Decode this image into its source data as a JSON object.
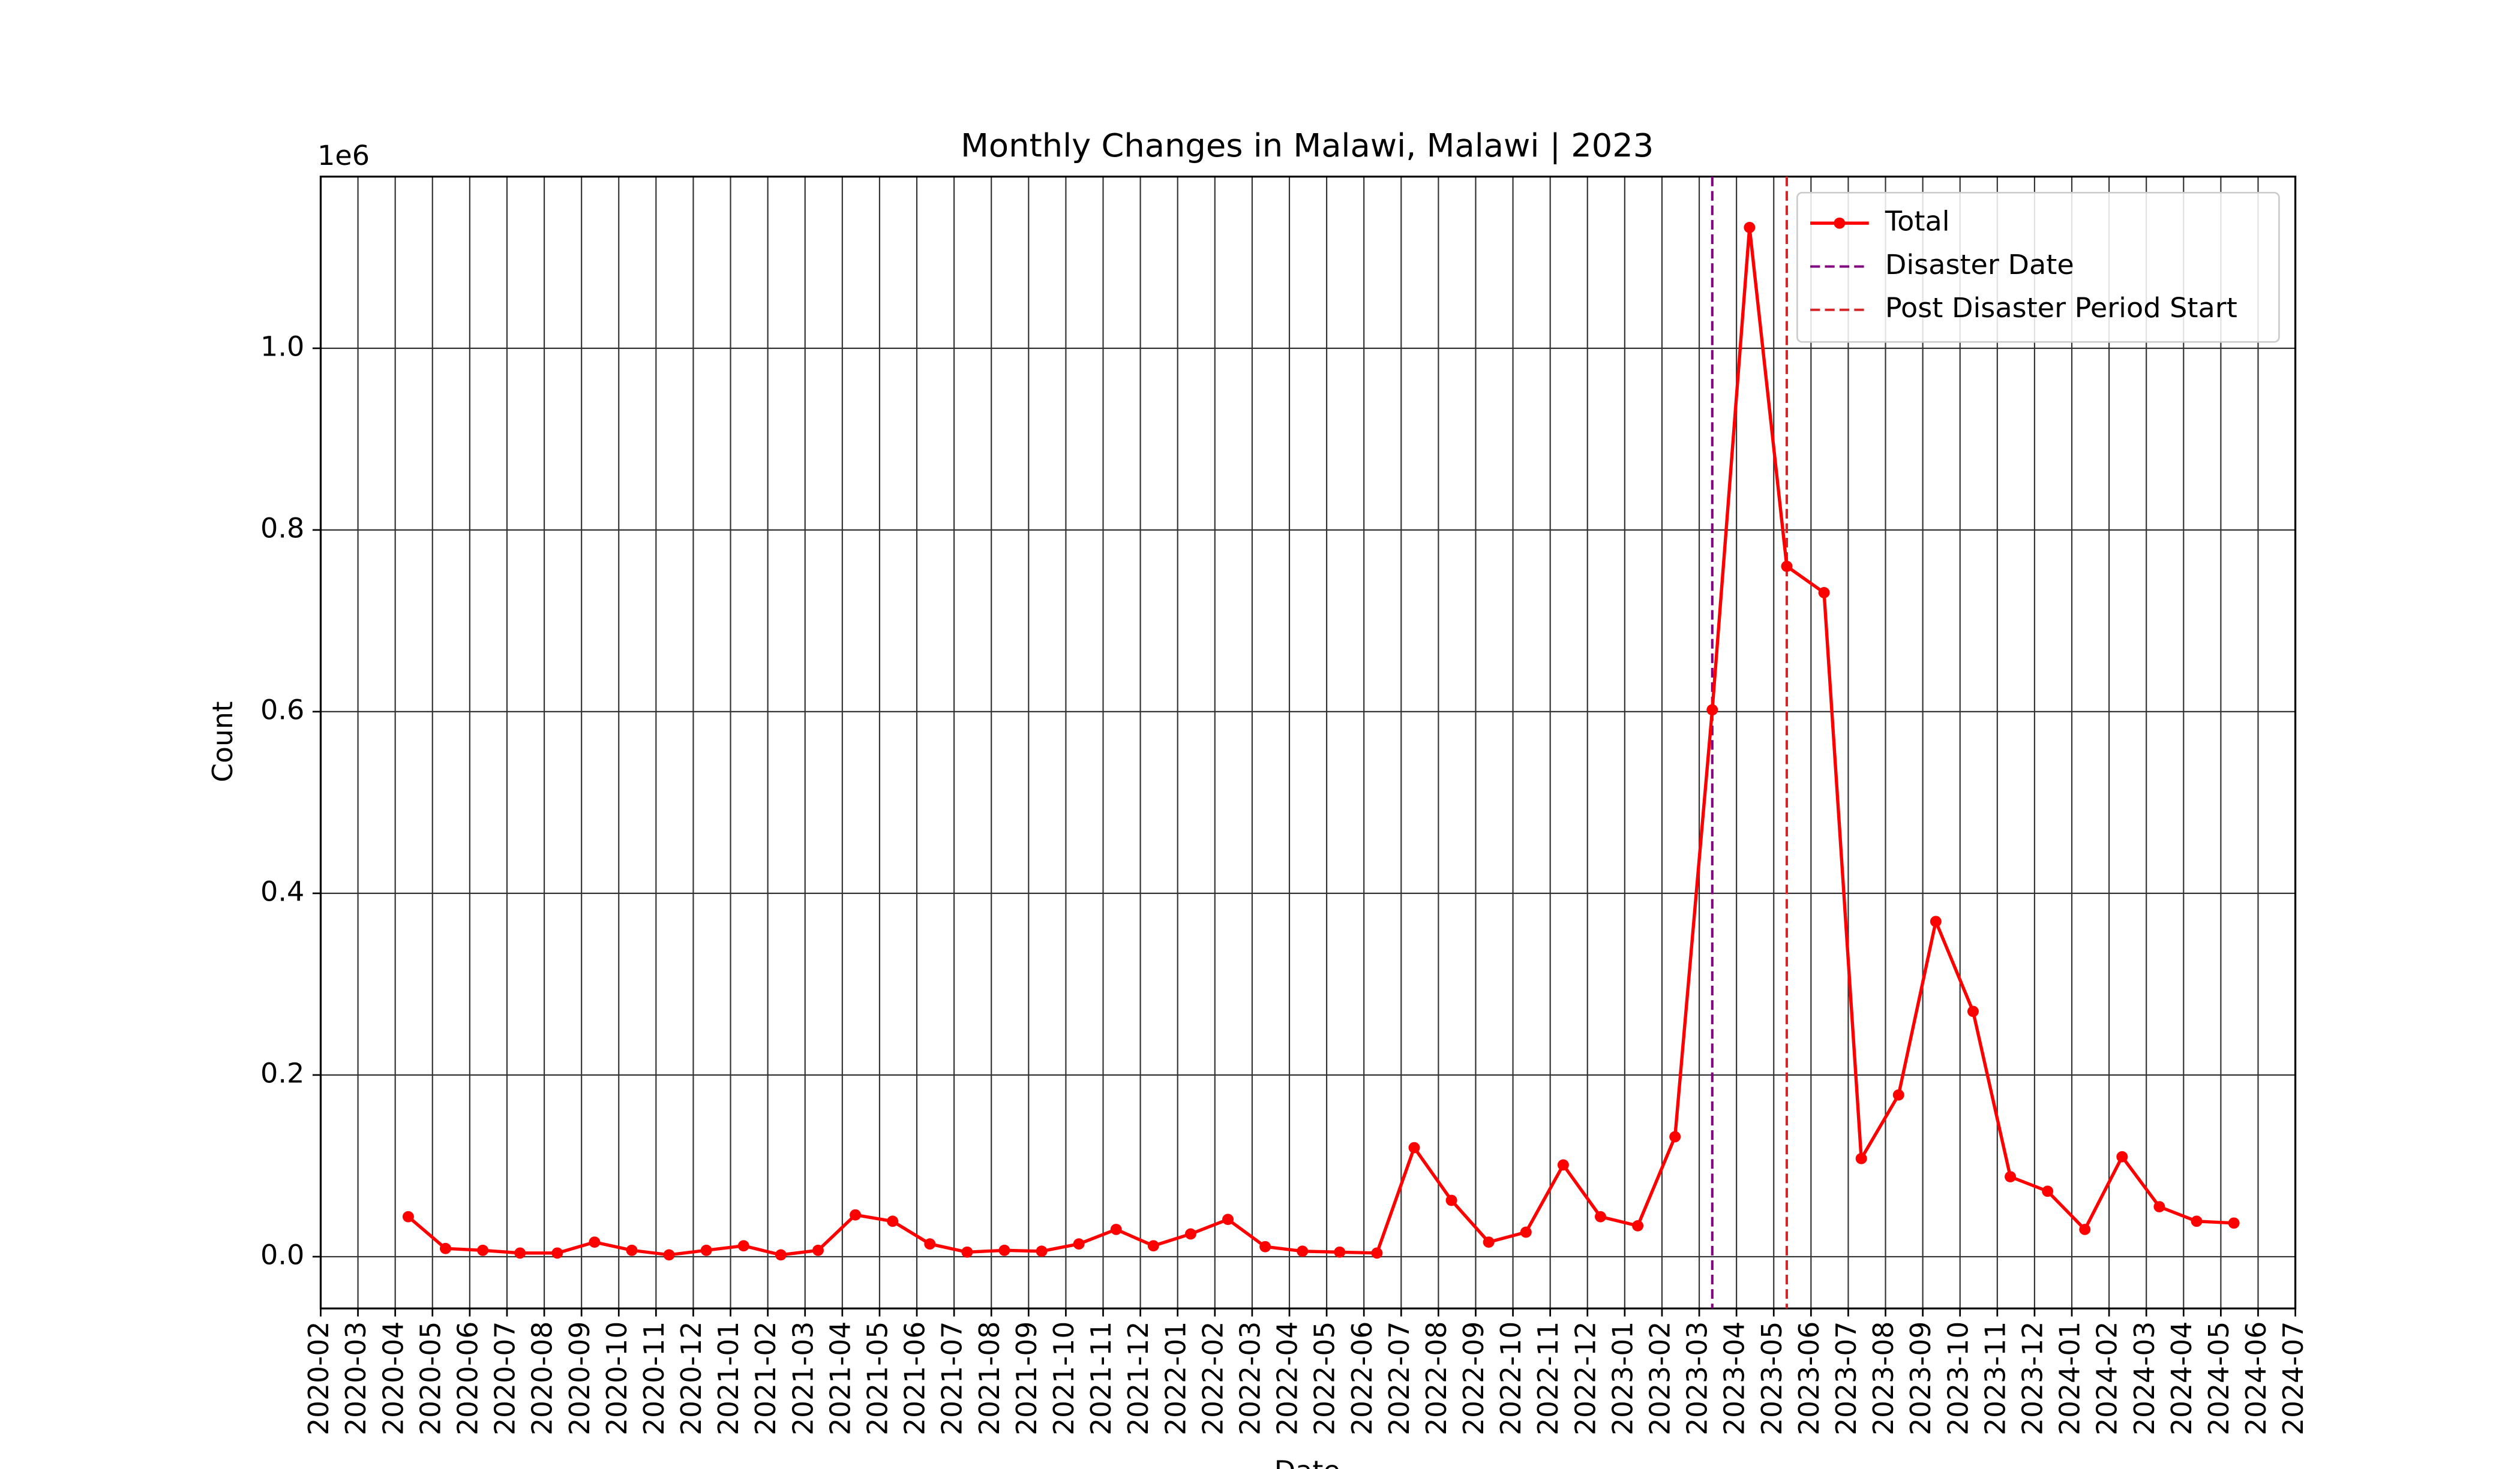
{
  "chart_data": {
    "type": "line",
    "title": "Monthly Changes in Malawi, Malawi | 2023",
    "xlabel": "Date",
    "ylabel": "Count",
    "y_offset_label": "1e6",
    "x": [
      "2020-04",
      "2020-05",
      "2020-06",
      "2020-07",
      "2020-08",
      "2020-09",
      "2020-10",
      "2020-11",
      "2020-12",
      "2021-01",
      "2021-02",
      "2021-03",
      "2021-04",
      "2021-05",
      "2021-06",
      "2021-07",
      "2021-08",
      "2021-09",
      "2021-10",
      "2021-11",
      "2021-12",
      "2022-01",
      "2022-02",
      "2022-03",
      "2022-04",
      "2022-05",
      "2022-06",
      "2022-07",
      "2022-08",
      "2022-09",
      "2022-10",
      "2022-11",
      "2022-12",
      "2023-01",
      "2023-02",
      "2023-03",
      "2023-04",
      "2023-05",
      "2023-06",
      "2023-07",
      "2023-08",
      "2023-09",
      "2023-10",
      "2023-11",
      "2023-12",
      "2024-01",
      "2024-02",
      "2024-03",
      "2024-04",
      "2024-05"
    ],
    "series": [
      {
        "name": "Total",
        "color": "#ff0000",
        "values": [
          0.044,
          0.009,
          0.007,
          0.004,
          0.004,
          0.016,
          0.007,
          0.002,
          0.007,
          0.012,
          0.002,
          0.007,
          0.046,
          0.039,
          0.014,
          0.005,
          0.007,
          0.006,
          0.014,
          0.03,
          0.012,
          0.025,
          0.041,
          0.011,
          0.006,
          0.005,
          0.004,
          0.12,
          0.062,
          0.016,
          0.027,
          0.101,
          0.044,
          0.034,
          0.132,
          0.602,
          1.133,
          0.76,
          0.731,
          0.108,
          0.178,
          0.369,
          0.27,
          0.088,
          0.072,
          0.03,
          0.11,
          0.055,
          0.039,
          0.037
        ]
      }
    ],
    "vlines": [
      {
        "name": "Disaster Date",
        "x": "2023-03",
        "color": "#800080"
      },
      {
        "name": "Post Disaster Period Start",
        "x": "2023-05",
        "color": "#d62728"
      }
    ],
    "xlim": [
      "2020-02",
      "2024-07"
    ],
    "xticks": [
      "2020-02",
      "2020-03",
      "2020-04",
      "2020-05",
      "2020-06",
      "2020-07",
      "2020-08",
      "2020-09",
      "2020-10",
      "2020-11",
      "2020-12",
      "2021-01",
      "2021-02",
      "2021-03",
      "2021-04",
      "2021-05",
      "2021-06",
      "2021-07",
      "2021-08",
      "2021-09",
      "2021-10",
      "2021-11",
      "2021-12",
      "2022-01",
      "2022-02",
      "2022-03",
      "2022-04",
      "2022-05",
      "2022-06",
      "2022-07",
      "2022-08",
      "2022-09",
      "2022-10",
      "2022-11",
      "2022-12",
      "2023-01",
      "2023-02",
      "2023-03",
      "2023-04",
      "2023-05",
      "2023-06",
      "2023-07",
      "2023-08",
      "2023-09",
      "2023-10",
      "2023-11",
      "2023-12",
      "2024-01",
      "2024-02",
      "2024-03",
      "2024-04",
      "2024-05",
      "2024-06",
      "2024-07"
    ],
    "ylim": [
      -0.057,
      1.189
    ],
    "yticks": [
      {
        "value": 0,
        "label": "0.0"
      },
      0.2,
      0.4,
      0.6,
      0.8,
      {
        "value": 1,
        "label": "1.0"
      }
    ],
    "grid": true,
    "legend": "upper right"
  }
}
